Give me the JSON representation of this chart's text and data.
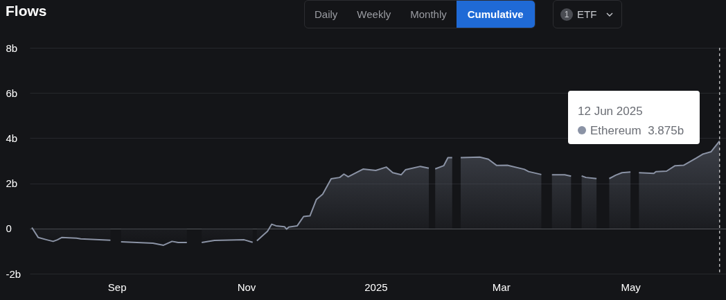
{
  "chart_data": {
    "type": "area",
    "title": "Flows",
    "x": [
      "2024-07-23",
      "2024-07-26",
      "2024-07-30",
      "2024-08-02",
      "2024-08-04",
      "2024-08-06",
      "2024-08-13",
      "2024-08-15",
      "2024-08-29",
      "2024-09-01",
      "2024-09-03",
      "2024-09-18",
      "2024-09-23",
      "2024-09-27",
      "2024-09-30",
      "2024-10-04",
      "2024-10-06",
      "2024-10-11",
      "2024-10-17",
      "2024-10-31",
      "2024-11-04",
      "2024-11-05",
      "2024-11-06",
      "2024-11-11",
      "2024-11-13",
      "2024-11-15",
      "2024-11-19",
      "2024-11-20",
      "2024-11-21",
      "2024-11-25",
      "2024-11-28",
      "2024-12-01",
      "2024-12-04",
      "2024-12-07",
      "2024-12-11",
      "2024-12-15",
      "2024-12-17",
      "2024-12-19",
      "2024-12-26",
      "2025-01-01",
      "2025-01-06",
      "2025-01-09",
      "2025-01-13",
      "2025-01-15",
      "2025-01-22",
      "2025-01-26",
      "2025-01-28",
      "2025-01-29",
      "2025-02-02",
      "2025-02-04",
      "2025-02-06",
      "2025-02-09",
      "2025-02-10",
      "2025-02-19",
      "2025-02-23",
      "2025-02-27",
      "2025-03-04",
      "2025-03-12",
      "2025-03-14",
      "2025-03-20",
      "2025-03-22",
      "2025-03-25",
      "2025-03-31",
      "2025-04-03",
      "2025-04-05",
      "2025-04-08",
      "2025-04-10",
      "2025-04-15",
      "2025-04-17",
      "2025-04-21",
      "2025-04-24",
      "2025-04-27",
      "2025-05-01",
      "2025-05-03",
      "2025-05-05",
      "2025-05-12",
      "2025-05-13",
      "2025-05-18",
      "2025-05-22",
      "2025-05-26",
      "2025-06-01",
      "2025-06-04",
      "2025-06-08",
      "2025-06-12"
    ],
    "series": [
      {
        "name": "Ethereum",
        "color": "#8b93a5",
        "values": [
          0.04,
          -0.4,
          -0.5,
          -0.57,
          -0.5,
          -0.4,
          -0.43,
          -0.46,
          -0.52,
          null,
          -0.59,
          -0.65,
          -0.74,
          -0.57,
          -0.62,
          -0.62,
          null,
          -0.62,
          -0.53,
          -0.5,
          -0.61,
          null,
          -0.54,
          -0.12,
          0.19,
          0.12,
          0.08,
          -0.03,
          0.06,
          0.12,
          0.53,
          0.56,
          1.28,
          1.52,
          2.2,
          2.26,
          2.41,
          2.29,
          2.63,
          2.57,
          2.72,
          2.47,
          2.38,
          2.6,
          2.75,
          2.67,
          null,
          2.64,
          2.78,
          3.14,
          3.14,
          null,
          3.14,
          3.16,
          3.07,
          2.79,
          2.8,
          2.62,
          2.52,
          2.39,
          null,
          2.38,
          2.38,
          2.32,
          null,
          2.33,
          2.26,
          2.21,
          null,
          2.21,
          2.36,
          2.47,
          2.5,
          null,
          2.47,
          2.44,
          2.52,
          2.54,
          2.78,
          2.8,
          3.12,
          3.29,
          3.4,
          3.875
        ]
      }
    ],
    "xlim": [
      "2024-07-22",
      "2025-06-15"
    ],
    "xticks": [
      {
        "value": "2024-09-01",
        "label": "Sep"
      },
      {
        "value": "2024-11-01",
        "label": "Nov"
      },
      {
        "value": "2025-01-01",
        "label": "2025"
      },
      {
        "value": "2025-03-01",
        "label": "Mar"
      },
      {
        "value": "2025-05-01",
        "label": "May"
      }
    ],
    "ylim": [
      -2,
      8
    ],
    "yticks": [
      {
        "value": -2,
        "label": "-2b"
      },
      0,
      {
        "value": 2,
        "label": "2b"
      },
      {
        "value": 4,
        "label": "4b"
      },
      {
        "value": 6,
        "label": "6b"
      },
      {
        "value": 8,
        "label": "8b"
      }
    ],
    "grid": "y",
    "ref_lines": [
      {
        "axis": "x",
        "value": "2025-06-12",
        "color": "#ffffff",
        "line_style": "dashed"
      }
    ],
    "annotations": [
      "12 Jun 2025",
      "3.875b",
      "Daily",
      "Weekly",
      "Monthly",
      "Cumulative",
      "1",
      "ETF"
    ]
  }
}
